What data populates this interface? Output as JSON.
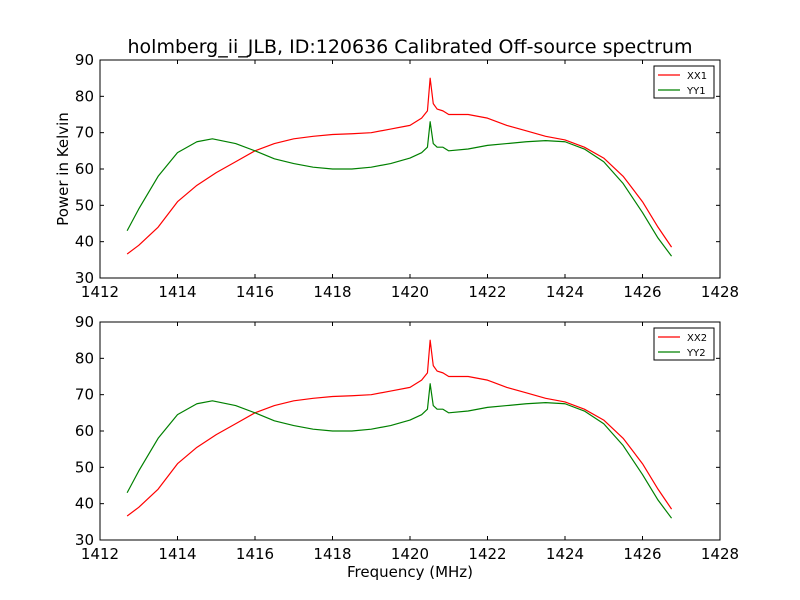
{
  "figure": {
    "title": "holmberg_ii_JLB, ID:120636 Calibrated Off-source spectrum"
  },
  "colors": {
    "xx": "#ff0000",
    "yy": "#008000",
    "axes": "#000000",
    "background": "#ffffff"
  },
  "chart_data": [
    {
      "type": "line",
      "title": "holmberg_ii_JLB, ID:120636 Calibrated Off-source spectrum",
      "xlabel": "",
      "ylabel": "Power in Kelvin",
      "xlim": [
        1412,
        1428
      ],
      "ylim": [
        30,
        90
      ],
      "xticks": [
        "1412",
        "1414",
        "1416",
        "1418",
        "1420",
        "1422",
        "1424",
        "1426",
        "1428"
      ],
      "yticks": [
        "30",
        "40",
        "50",
        "60",
        "70",
        "80",
        "90"
      ],
      "legend": "top-right",
      "grid": false,
      "series": [
        {
          "name": "XX1",
          "color": "#ff0000",
          "points": [
            [
              1412.7,
              36.6
            ],
            [
              1413.0,
              39.0
            ],
            [
              1413.5,
              44.0
            ],
            [
              1414.0,
              51.0
            ],
            [
              1414.5,
              55.5
            ],
            [
              1415.0,
              59.0
            ],
            [
              1415.5,
              62.0
            ],
            [
              1416.0,
              65.0
            ],
            [
              1416.5,
              67.0
            ],
            [
              1417.0,
              68.3
            ],
            [
              1417.5,
              69.0
            ],
            [
              1418.0,
              69.5
            ],
            [
              1418.5,
              69.7
            ],
            [
              1419.0,
              70.0
            ],
            [
              1419.5,
              71.0
            ],
            [
              1420.0,
              72.0
            ],
            [
              1420.3,
              74.0
            ],
            [
              1420.45,
              76.0
            ],
            [
              1420.52,
              85.0
            ],
            [
              1420.6,
              78.0
            ],
            [
              1420.7,
              76.5
            ],
            [
              1420.85,
              76.0
            ],
            [
              1421.0,
              75.0
            ],
            [
              1421.5,
              75.0
            ],
            [
              1422.0,
              74.0
            ],
            [
              1422.5,
              72.0
            ],
            [
              1423.0,
              70.5
            ],
            [
              1423.5,
              69.0
            ],
            [
              1424.0,
              68.0
            ],
            [
              1424.5,
              66.0
            ],
            [
              1425.0,
              63.0
            ],
            [
              1425.5,
              58.0
            ],
            [
              1426.0,
              51.0
            ],
            [
              1426.4,
              44.0
            ],
            [
              1426.75,
              38.5
            ]
          ]
        },
        {
          "name": "YY1",
          "color": "#008000",
          "points": [
            [
              1412.7,
              43.0
            ],
            [
              1413.0,
              49.0
            ],
            [
              1413.5,
              58.0
            ],
            [
              1414.0,
              64.5
            ],
            [
              1414.5,
              67.5
            ],
            [
              1414.9,
              68.3
            ],
            [
              1415.5,
              67.0
            ],
            [
              1416.0,
              65.0
            ],
            [
              1416.5,
              62.8
            ],
            [
              1417.0,
              61.5
            ],
            [
              1417.5,
              60.5
            ],
            [
              1418.0,
              60.0
            ],
            [
              1418.5,
              60.0
            ],
            [
              1419.0,
              60.5
            ],
            [
              1419.5,
              61.5
            ],
            [
              1420.0,
              63.0
            ],
            [
              1420.3,
              64.5
            ],
            [
              1420.45,
              66.0
            ],
            [
              1420.52,
              73.0
            ],
            [
              1420.6,
              67.0
            ],
            [
              1420.7,
              66.0
            ],
            [
              1420.85,
              66.0
            ],
            [
              1421.0,
              65.0
            ],
            [
              1421.5,
              65.5
            ],
            [
              1422.0,
              66.5
            ],
            [
              1422.5,
              67.0
            ],
            [
              1423.0,
              67.5
            ],
            [
              1423.5,
              67.8
            ],
            [
              1424.0,
              67.5
            ],
            [
              1424.5,
              65.5
            ],
            [
              1425.0,
              62.0
            ],
            [
              1425.5,
              56.0
            ],
            [
              1426.0,
              48.0
            ],
            [
              1426.4,
              41.0
            ],
            [
              1426.75,
              36.0
            ]
          ]
        }
      ]
    },
    {
      "type": "line",
      "title": "",
      "xlabel": "Frequency (MHz)",
      "ylabel": "",
      "xlim": [
        1412,
        1428
      ],
      "ylim": [
        30,
        90
      ],
      "xticks": [
        "1412",
        "1414",
        "1416",
        "1418",
        "1420",
        "1422",
        "1424",
        "1426",
        "1428"
      ],
      "yticks": [
        "30",
        "40",
        "50",
        "60",
        "70",
        "80",
        "90"
      ],
      "legend": "top-right",
      "grid": false,
      "series": [
        {
          "name": "XX2",
          "color": "#ff0000",
          "points": [
            [
              1412.7,
              36.6
            ],
            [
              1413.0,
              39.0
            ],
            [
              1413.5,
              44.0
            ],
            [
              1414.0,
              51.0
            ],
            [
              1414.5,
              55.5
            ],
            [
              1415.0,
              59.0
            ],
            [
              1415.5,
              62.0
            ],
            [
              1416.0,
              65.0
            ],
            [
              1416.5,
              67.0
            ],
            [
              1417.0,
              68.3
            ],
            [
              1417.5,
              69.0
            ],
            [
              1418.0,
              69.5
            ],
            [
              1418.5,
              69.7
            ],
            [
              1419.0,
              70.0
            ],
            [
              1419.5,
              71.0
            ],
            [
              1420.0,
              72.0
            ],
            [
              1420.3,
              74.0
            ],
            [
              1420.45,
              76.0
            ],
            [
              1420.52,
              85.0
            ],
            [
              1420.6,
              78.0
            ],
            [
              1420.7,
              76.5
            ],
            [
              1420.85,
              76.0
            ],
            [
              1421.0,
              75.0
            ],
            [
              1421.5,
              75.0
            ],
            [
              1422.0,
              74.0
            ],
            [
              1422.5,
              72.0
            ],
            [
              1423.0,
              70.5
            ],
            [
              1423.5,
              69.0
            ],
            [
              1424.0,
              68.0
            ],
            [
              1424.5,
              66.0
            ],
            [
              1425.0,
              63.0
            ],
            [
              1425.5,
              58.0
            ],
            [
              1426.0,
              51.0
            ],
            [
              1426.4,
              44.0
            ],
            [
              1426.75,
              38.5
            ]
          ]
        },
        {
          "name": "YY2",
          "color": "#008000",
          "points": [
            [
              1412.7,
              43.0
            ],
            [
              1413.0,
              49.0
            ],
            [
              1413.5,
              58.0
            ],
            [
              1414.0,
              64.5
            ],
            [
              1414.5,
              67.5
            ],
            [
              1414.9,
              68.3
            ],
            [
              1415.5,
              67.0
            ],
            [
              1416.0,
              65.0
            ],
            [
              1416.5,
              62.8
            ],
            [
              1417.0,
              61.5
            ],
            [
              1417.5,
              60.5
            ],
            [
              1418.0,
              60.0
            ],
            [
              1418.5,
              60.0
            ],
            [
              1419.0,
              60.5
            ],
            [
              1419.5,
              61.5
            ],
            [
              1420.0,
              63.0
            ],
            [
              1420.3,
              64.5
            ],
            [
              1420.45,
              66.0
            ],
            [
              1420.52,
              73.0
            ],
            [
              1420.6,
              67.0
            ],
            [
              1420.7,
              66.0
            ],
            [
              1420.85,
              66.0
            ],
            [
              1421.0,
              65.0
            ],
            [
              1421.5,
              65.5
            ],
            [
              1422.0,
              66.5
            ],
            [
              1422.5,
              67.0
            ],
            [
              1423.0,
              67.5
            ],
            [
              1423.5,
              67.8
            ],
            [
              1424.0,
              67.5
            ],
            [
              1424.5,
              65.5
            ],
            [
              1425.0,
              62.0
            ],
            [
              1425.5,
              56.0
            ],
            [
              1426.0,
              48.0
            ],
            [
              1426.4,
              41.0
            ],
            [
              1426.75,
              36.0
            ]
          ]
        }
      ]
    }
  ]
}
